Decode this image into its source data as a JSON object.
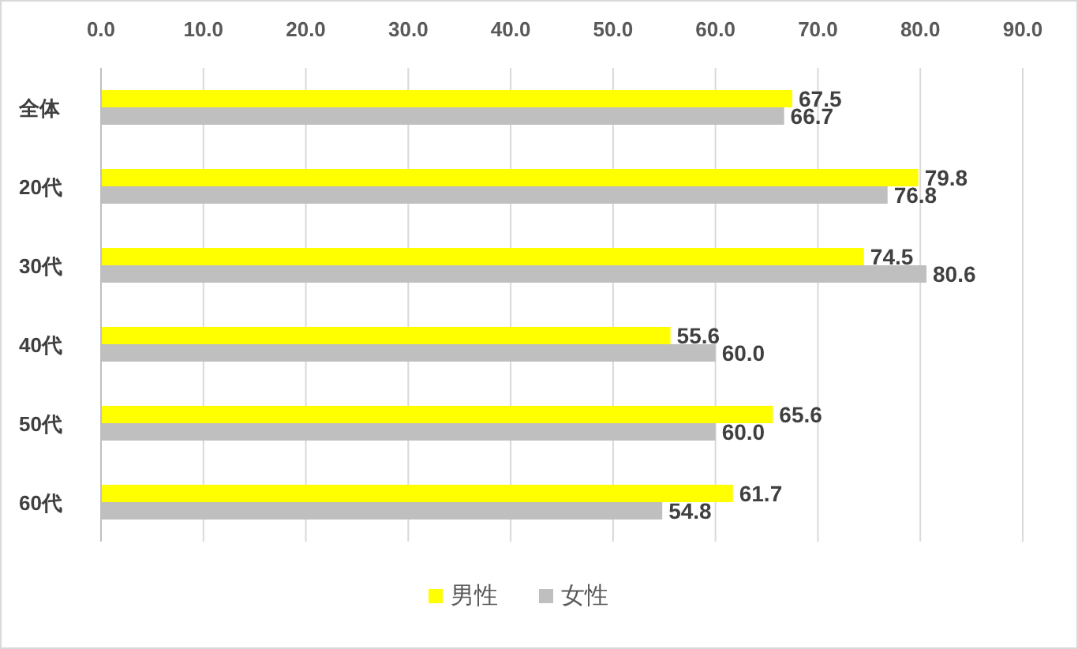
{
  "chart_data": {
    "type": "bar",
    "orientation": "horizontal",
    "categories": [
      "全体",
      "20代",
      "30代",
      "40代",
      "50代",
      "60代"
    ],
    "series": [
      {
        "name": "男性",
        "color": "#ffff00",
        "values": [
          67.5,
          79.8,
          74.5,
          55.6,
          65.6,
          61.7
        ]
      },
      {
        "name": "女性",
        "color": "#bfbfbf",
        "values": [
          66.7,
          76.8,
          80.6,
          60.0,
          60.0,
          54.8
        ]
      }
    ],
    "xlim": [
      0,
      90
    ],
    "xticks": [
      {
        "value": 0,
        "label": "0.0"
      },
      {
        "value": 10,
        "label": "10.0"
      },
      {
        "value": 20,
        "label": "20.0"
      },
      {
        "value": 30,
        "label": "30.0"
      },
      {
        "value": 40,
        "label": "40.0"
      },
      {
        "value": 50,
        "label": "50.0"
      },
      {
        "value": 60,
        "label": "60.0"
      },
      {
        "value": 70,
        "label": "70.0"
      },
      {
        "value": 80,
        "label": "80.0"
      },
      {
        "value": 90,
        "label": "90.0"
      }
    ],
    "value_labels": [
      [
        "67.5",
        "79.8",
        "74.5",
        "55.6",
        "65.6",
        "61.7"
      ],
      [
        "66.7",
        "76.8",
        "80.6",
        "60.0",
        "60.0",
        "54.8"
      ]
    ],
    "grid": "x",
    "legend": "bottom"
  }
}
